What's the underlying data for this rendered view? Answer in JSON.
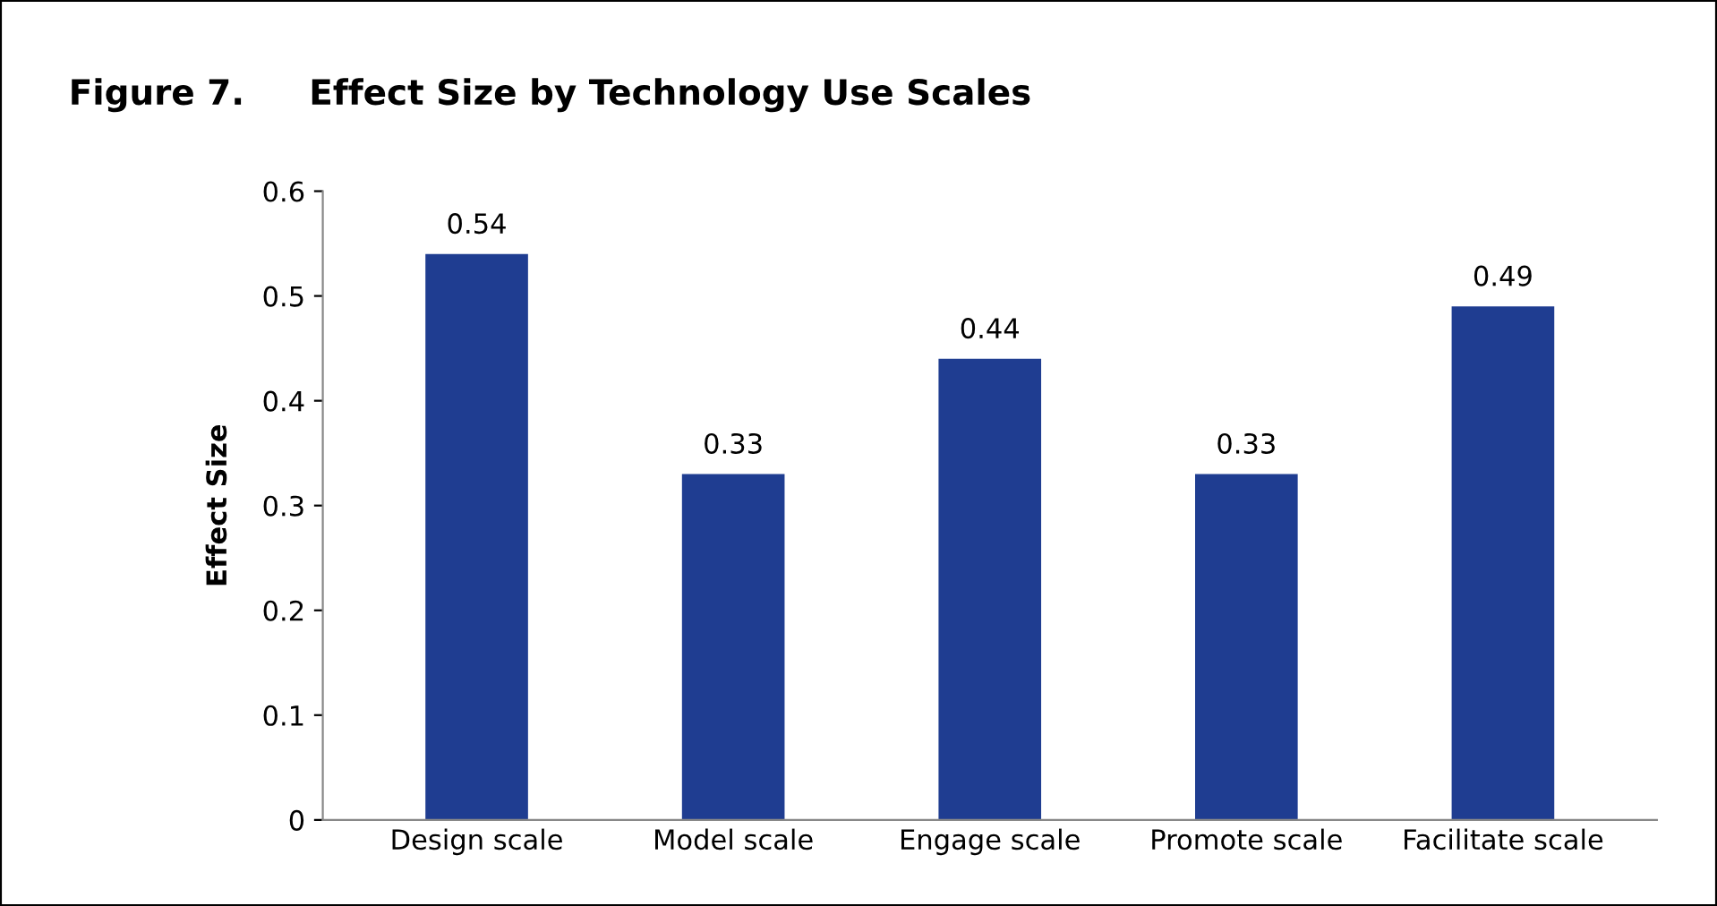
{
  "chart_data": {
    "type": "bar",
    "title": "Figure 7.",
    "subtitle": "Effect Size by Technology Use Scales",
    "ylabel": "Effect Size",
    "categories": [
      "Design scale",
      "Model scale",
      "Engage scale",
      "Promote scale",
      "Facilitate scale"
    ],
    "values": [
      0.54,
      0.33,
      0.44,
      0.33,
      0.49
    ],
    "color": "#1f3d91",
    "ylim": [
      0,
      0.6
    ],
    "yticks": [
      {
        "value": 0,
        "label": "0"
      },
      0.1,
      0.2,
      0.3,
      0.4,
      0.5,
      0.6
    ],
    "grid": false,
    "data_labels": true
  }
}
